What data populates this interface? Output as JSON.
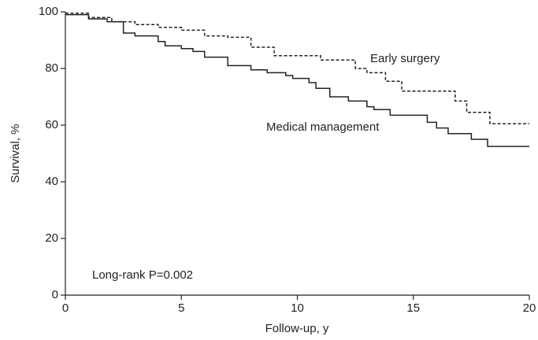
{
  "chart_data": {
    "type": "line",
    "step": true,
    "xlabel": "Follow-up, y",
    "ylabel": "Survival, %",
    "annotation": "Long-rank P=0.002",
    "xlim": [
      0,
      20
    ],
    "xticks": [
      0,
      5,
      10,
      15,
      20
    ],
    "ylim": [
      0,
      100
    ],
    "yticks": [
      0,
      20,
      40,
      60,
      80,
      100
    ],
    "series": [
      {
        "name": "Early surgery",
        "color": "#222222",
        "dash": true,
        "x": [
          0,
          1,
          1,
          2,
          2,
          3,
          3,
          4,
          4,
          5,
          5,
          6,
          6,
          7,
          7,
          8,
          8,
          9,
          9,
          11,
          11,
          12.5,
          12.5,
          13,
          13,
          13.8,
          13.8,
          14.5,
          14.5,
          16.8,
          16.8,
          17.3,
          17.3,
          18.3,
          18.3,
          20
        ],
        "values": [
          99.5,
          99.5,
          98,
          98,
          96.5,
          96.5,
          95.5,
          95.5,
          94.5,
          94.5,
          93.5,
          93.5,
          91.5,
          91.5,
          91,
          91,
          87.5,
          87.5,
          84.5,
          84.5,
          83,
          83,
          80,
          80,
          78.5,
          78.5,
          75.5,
          75.5,
          72,
          72,
          68.5,
          68.5,
          64.5,
          64.5,
          60.5,
          60.5
        ]
      },
      {
        "name": "Medical management",
        "color": "#222222",
        "dash": false,
        "x": [
          0,
          1,
          1,
          1.8,
          1.8,
          2.5,
          2.5,
          3,
          3,
          4,
          4,
          4.3,
          4.3,
          5,
          5,
          5.5,
          5.5,
          6,
          6,
          7,
          7,
          8,
          8,
          8.7,
          8.7,
          9.5,
          9.5,
          9.8,
          9.8,
          10.5,
          10.5,
          10.8,
          10.8,
          11.4,
          11.4,
          12.2,
          12.2,
          13,
          13,
          13.3,
          13.3,
          14,
          14,
          15.6,
          15.6,
          16,
          16,
          16.5,
          16.5,
          17.5,
          17.5,
          18.2,
          18.2,
          20
        ],
        "values": [
          99,
          99,
          97.5,
          97.5,
          96.5,
          96.5,
          92.5,
          92.5,
          91.5,
          91.5,
          89.5,
          89.5,
          88,
          88,
          87,
          87,
          86,
          86,
          84,
          84,
          81,
          81,
          79.5,
          79.5,
          78.5,
          78.5,
          77.5,
          77.5,
          76.5,
          76.5,
          75,
          75,
          73,
          73,
          70,
          70,
          68.5,
          68.5,
          66.5,
          66.5,
          65.5,
          65.5,
          63.5,
          63.5,
          61,
          61,
          59,
          59,
          57,
          57,
          55,
          55,
          52.5,
          52.5
        ]
      }
    ]
  }
}
